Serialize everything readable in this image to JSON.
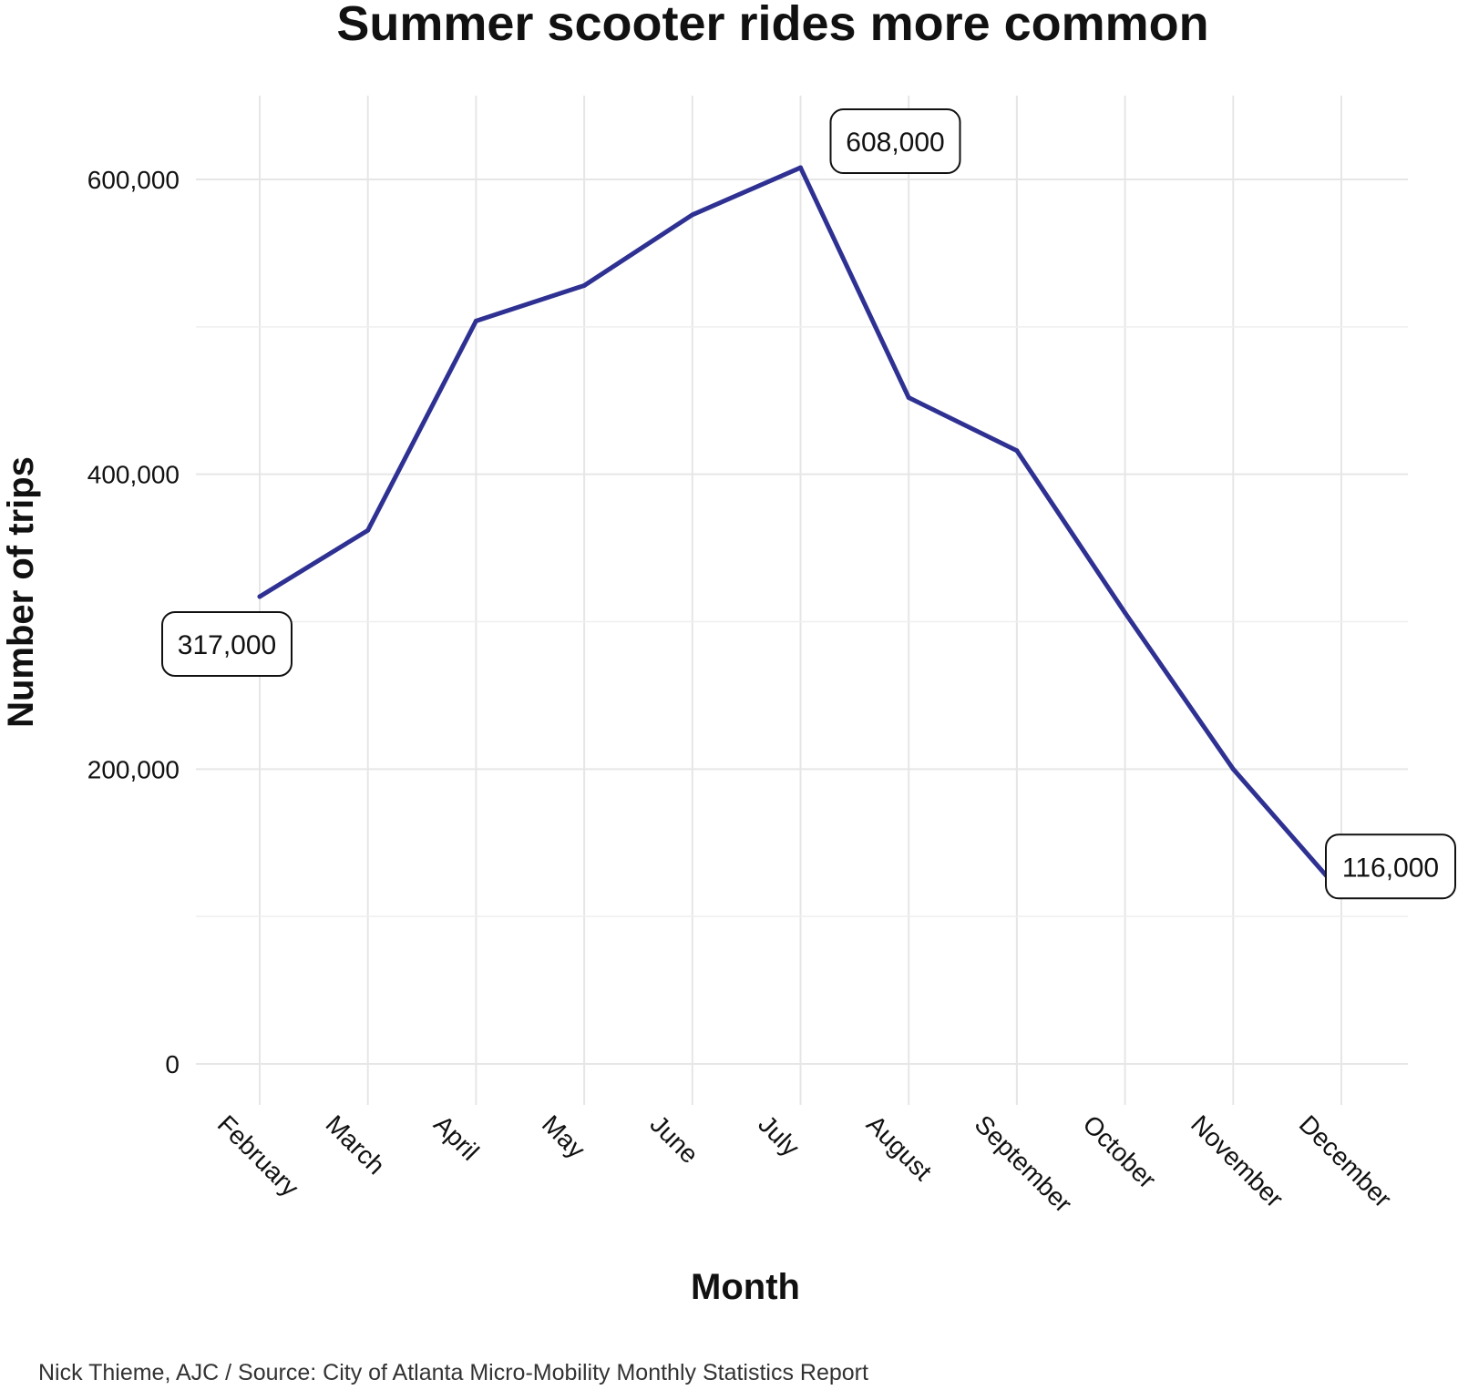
{
  "chart_data": {
    "type": "line",
    "title": "Summer scooter rides more common",
    "xlabel": "Month",
    "ylabel": "Number of trips",
    "caption": "Nick Thieme, AJC / Source: City of Atlanta Micro-Mobility Monthly Statistics Report",
    "categories": [
      "February",
      "March",
      "April",
      "May",
      "June",
      "July",
      "August",
      "September",
      "October",
      "November",
      "December"
    ],
    "values": [
      317000,
      362000,
      504000,
      528000,
      576000,
      608000,
      452000,
      416000,
      306000,
      200000,
      116000
    ],
    "ylim": [
      -30000,
      640000
    ],
    "yticks": [
      0,
      200000,
      400000,
      600000
    ],
    "ytick_labels": [
      "0",
      "200,000",
      "400,000",
      "600,000"
    ],
    "minor_yticks": [
      100000,
      300000,
      500000
    ],
    "grid": true,
    "line_color": "#2e3192",
    "annotations": [
      {
        "index": 0,
        "label": "317,000",
        "position": "below-left"
      },
      {
        "index": 5,
        "label": "608,000",
        "position": "above-right"
      },
      {
        "index": 10,
        "label": "116,000",
        "position": "above-right"
      }
    ]
  }
}
